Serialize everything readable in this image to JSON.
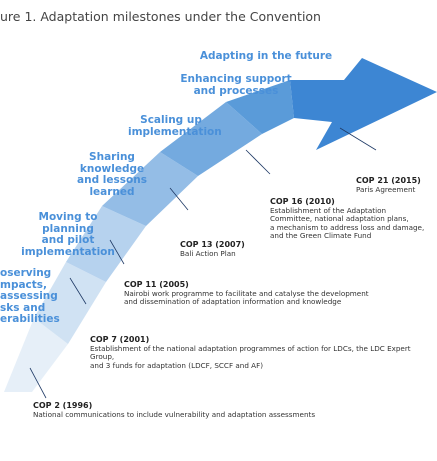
{
  "title": "ure 1. Adaptation milestones under the Convention",
  "colors": {
    "arrow_light": "#dde9f6",
    "arrow_dark": "#3a84d2",
    "label_blue": "#4a90d9",
    "leader_line": "#1f3a66"
  },
  "stages": [
    {
      "label": "oserving\nmpacts,\nassessing\nsks and\nerabilities"
    },
    {
      "label": "Moving to\nplanning\nand pilot\nimplementation"
    },
    {
      "label": "Sharing\nknowledge\nand lessons\nlearned"
    },
    {
      "label": "Scaling up\nimplementation"
    },
    {
      "label": "Enhancing support\nand processes"
    },
    {
      "label": "Adapting in the future"
    }
  ],
  "milestones": [
    {
      "title": "COP 2 (1996)",
      "desc": "National communications to include vulnerability and adaptation assessments"
    },
    {
      "title": "COP 7 (2001)",
      "desc": "Establishment of the national adaptation programmes of action for LDCs, the LDC Expert Group,\nand 3 funds for adaptation (LDCF, SCCF and AF)"
    },
    {
      "title": "COP 11 (2005)",
      "desc": "Nairobi work programme to facilitate and catalyse the development\nand dissemination of adaptation information and knowledge"
    },
    {
      "title": "COP 13 (2007)",
      "desc": "Bali Action Plan"
    },
    {
      "title": "COP 16 (2010)",
      "desc": "Establishment of the Adaptation\nCommittee, national adaptation plans,\na mechanism to address loss and damage,\nand the Green Climate Fund"
    },
    {
      "title": "COP 21 (2015)",
      "desc": "Paris Agreement"
    }
  ]
}
